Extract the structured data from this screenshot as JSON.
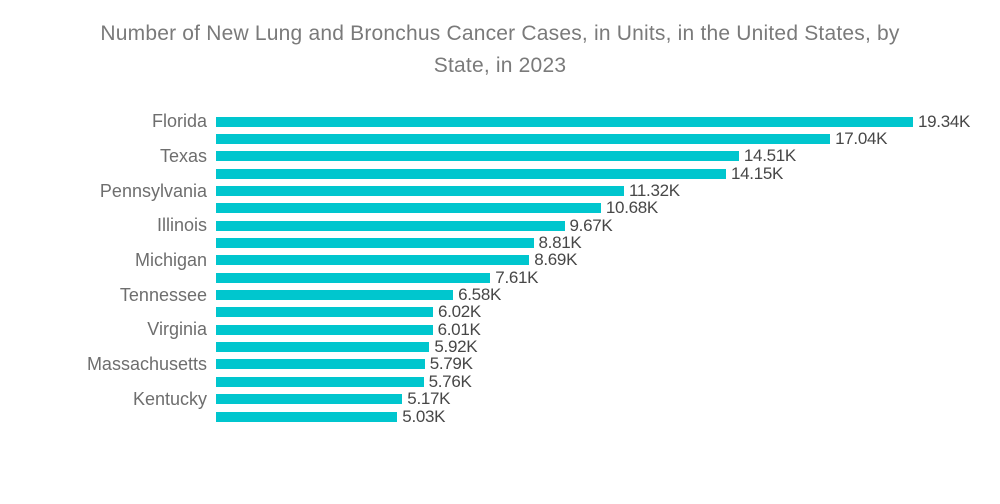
{
  "header": {
    "line1": "Number of New Lung and Bronchus Cancer Cases, in Units, in the United States, by",
    "line2": "State, in 2023"
  },
  "colors": {
    "bar": "#00C6CE",
    "title_text": "#7A7A7A",
    "state_label_text": "#6E6E6E",
    "value_label_text": "#474747",
    "background": "#FFFFFF"
  },
  "chart_data": {
    "type": "bar",
    "orientation": "horizontal",
    "title": "Number of New Lung and Bronchus Cancer Cases, in Units, in the United States, by State, in 2023",
    "xlabel": "",
    "ylabel": "",
    "unit": "K",
    "xlim": [
      0,
      19.34
    ],
    "grid": false,
    "legend": "none",
    "note": "18 bars; only alternating bars carry a visible state label",
    "bars": [
      {
        "label": "Florida",
        "value": 19.34,
        "value_label": "19.34K"
      },
      {
        "label": "",
        "value": 17.04,
        "value_label": "17.04K"
      },
      {
        "label": "Texas",
        "value": 14.51,
        "value_label": "14.51K"
      },
      {
        "label": "",
        "value": 14.15,
        "value_label": "14.15K"
      },
      {
        "label": "Pennsylvania",
        "value": 11.32,
        "value_label": "11.32K"
      },
      {
        "label": "",
        "value": 10.68,
        "value_label": "10.68K"
      },
      {
        "label": "Illinois",
        "value": 9.67,
        "value_label": "9.67K"
      },
      {
        "label": "",
        "value": 8.81,
        "value_label": "8.81K"
      },
      {
        "label": "Michigan",
        "value": 8.69,
        "value_label": "8.69K"
      },
      {
        "label": "",
        "value": 7.61,
        "value_label": "7.61K"
      },
      {
        "label": "Tennessee",
        "value": 6.58,
        "value_label": "6.58K"
      },
      {
        "label": "",
        "value": 6.02,
        "value_label": "6.02K"
      },
      {
        "label": "Virginia",
        "value": 6.01,
        "value_label": "6.01K"
      },
      {
        "label": "",
        "value": 5.92,
        "value_label": "5.92K"
      },
      {
        "label": "Massachusetts",
        "value": 5.79,
        "value_label": "5.79K"
      },
      {
        "label": "",
        "value": 5.76,
        "value_label": "5.76K"
      },
      {
        "label": "Kentucky",
        "value": 5.17,
        "value_label": "5.17K"
      },
      {
        "label": "",
        "value": 5.03,
        "value_label": "5.03K"
      }
    ]
  }
}
